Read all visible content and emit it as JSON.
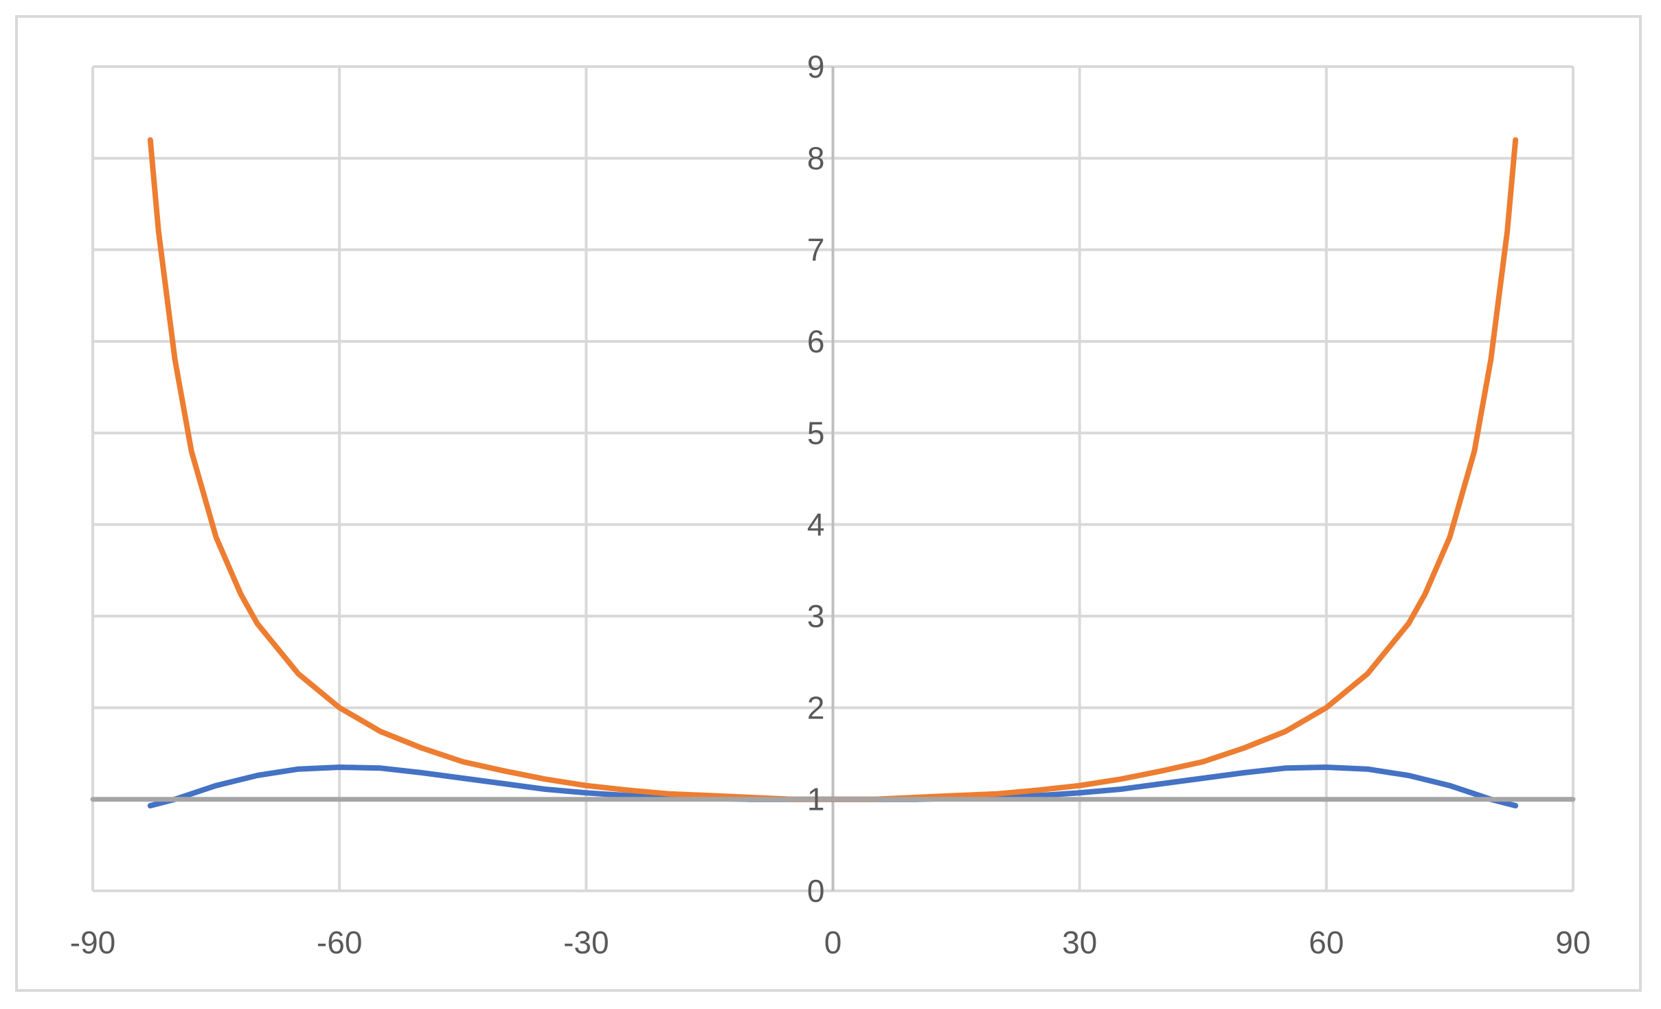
{
  "chart_data": {
    "type": "line",
    "title": "",
    "xlabel": "",
    "ylabel": "",
    "xlim": [
      -90,
      90
    ],
    "ylim": [
      0,
      9
    ],
    "x_ticks": [
      -90,
      -60,
      -30,
      0,
      30,
      60,
      90
    ],
    "y_ticks": [
      0,
      1,
      2,
      3,
      4,
      5,
      6,
      7,
      8,
      9
    ],
    "x_tick_labels": [
      "-90",
      "-60",
      "-30",
      "0",
      "30",
      "60",
      "90"
    ],
    "y_tick_labels": [
      "0",
      "1",
      "2",
      "3",
      "4",
      "5",
      "6",
      "7",
      "8",
      "9"
    ],
    "grid": true,
    "legend": "none",
    "series": [
      {
        "color": "#4472c4",
        "x": [
          -83,
          -80,
          -75,
          -70,
          -65,
          -60,
          -55,
          -50,
          -45,
          -40,
          -35,
          -30,
          -25,
          -20,
          -15,
          -10,
          -5,
          0,
          5,
          10,
          15,
          20,
          25,
          30,
          35,
          40,
          45,
          50,
          55,
          60,
          65,
          70,
          75,
          80,
          83
        ],
        "y": [
          0.93,
          1.0,
          1.15,
          1.26,
          1.33,
          1.35,
          1.34,
          1.29,
          1.23,
          1.17,
          1.11,
          1.07,
          1.04,
          1.02,
          1.01,
          1.0,
          1.0,
          1.0,
          1.0,
          1.0,
          1.01,
          1.02,
          1.04,
          1.07,
          1.11,
          1.17,
          1.23,
          1.29,
          1.34,
          1.35,
          1.33,
          1.26,
          1.15,
          1.0,
          0.93
        ]
      },
      {
        "color": "#ed7d31",
        "x": [
          -83,
          -82,
          -80,
          -78,
          -75,
          -72,
          -70,
          -65,
          -60,
          -55,
          -50,
          -45,
          -40,
          -35,
          -30,
          -25,
          -20,
          -15,
          -10,
          -5,
          0,
          5,
          10,
          15,
          20,
          25,
          30,
          35,
          40,
          45,
          50,
          55,
          60,
          65,
          70,
          72,
          75,
          78,
          80,
          82,
          83
        ],
        "y": [
          8.2,
          7.2,
          5.8,
          4.8,
          3.86,
          3.24,
          2.92,
          2.37,
          2.0,
          1.74,
          1.56,
          1.41,
          1.31,
          1.22,
          1.15,
          1.1,
          1.06,
          1.04,
          1.02,
          1.0,
          1.0,
          1.0,
          1.02,
          1.04,
          1.06,
          1.1,
          1.15,
          1.22,
          1.31,
          1.41,
          1.56,
          1.74,
          2.0,
          2.37,
          2.92,
          3.24,
          3.86,
          4.8,
          5.8,
          7.2,
          8.2
        ]
      },
      {
        "color": "#a5a5a5",
        "x": [
          -90,
          90
        ],
        "y": [
          1,
          1
        ]
      }
    ]
  }
}
